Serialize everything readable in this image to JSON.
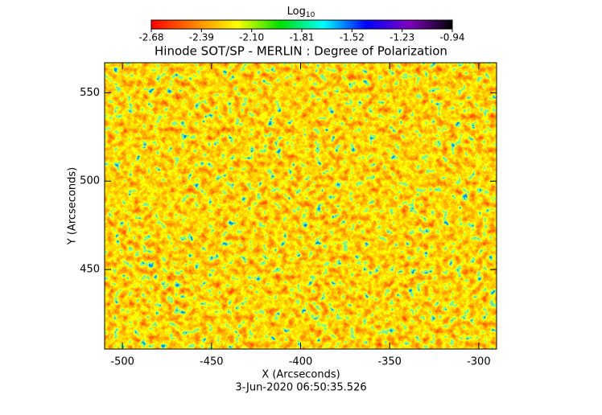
{
  "chart_data": {
    "type": "image",
    "title": "Hinode SOT/SP - MERLIN : Degree of Polarization",
    "x_label": "X (Arcseconds)",
    "y_label": "Y (Arcseconds)",
    "footer": "3-Jun-2020 06:50:35.526",
    "xlim": [
      -510,
      -290
    ],
    "xticks": [
      -500,
      -450,
      -400,
      -350,
      -300
    ],
    "ylim": [
      405,
      567
    ],
    "yticks": [
      450,
      500,
      550
    ],
    "colorbar_label": "Log",
    "colorbar_label_sub": "10",
    "colorbar_lim": [
      -2.68,
      -0.94
    ],
    "colorbar_ticks": [
      -2.68,
      -2.39,
      -2.1,
      -1.81,
      -1.52,
      -1.23,
      -0.94
    ],
    "colormap": [
      "#ff0000",
      "#ff8000",
      "#ffff00",
      "#00e000",
      "#00ffff",
      "#0000ff",
      "#8000c0",
      "#000000"
    ]
  }
}
